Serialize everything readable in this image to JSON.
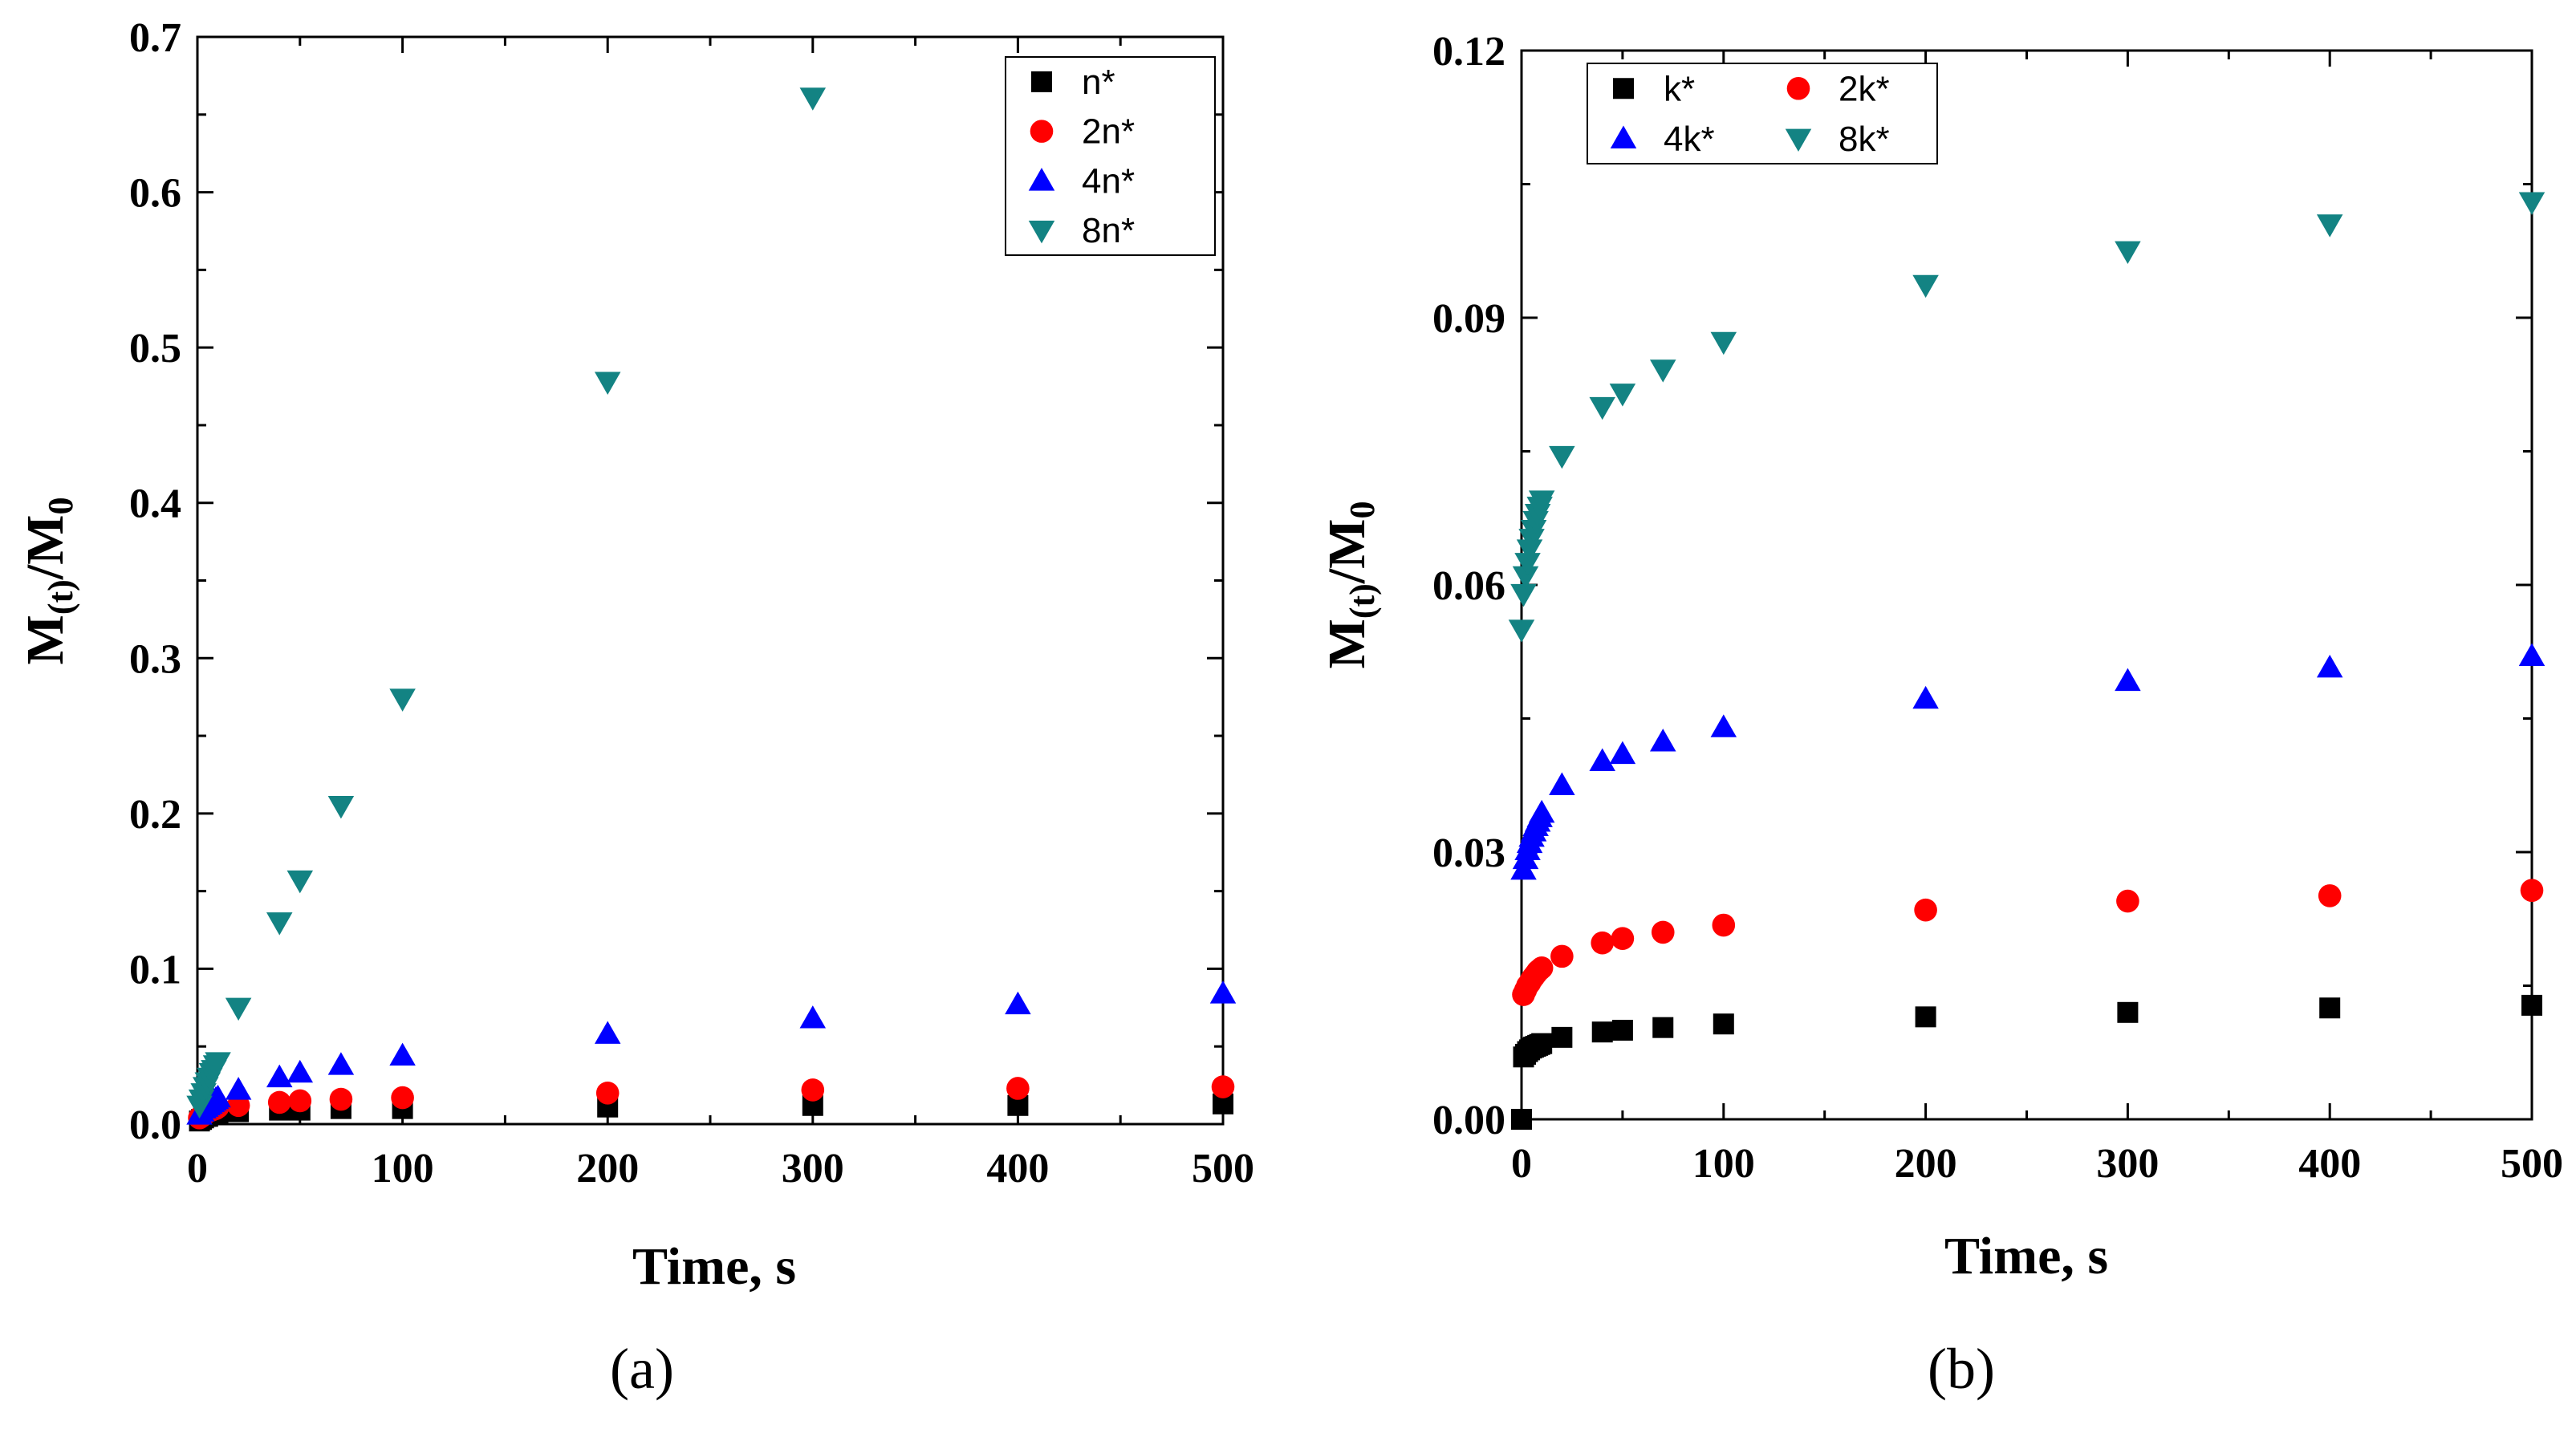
{
  "chart_data": [
    {
      "panel": "a",
      "caption": "(a)",
      "type": "scatter",
      "xlabel": "Time, s",
      "ylabel": "M(t)/M0",
      "ylabel_main": "M",
      "ylabel_sub1": "(t)",
      "ylabel_mid": "/M",
      "ylabel_sub2": "0",
      "xlim": [
        0,
        500
      ],
      "ylim": [
        0,
        0.7
      ],
      "xticks": [
        0,
        100,
        200,
        300,
        400,
        500
      ],
      "xtick_labels": [
        "0",
        "100",
        "200",
        "300",
        "400",
        "500"
      ],
      "yticks": [
        0,
        0.1,
        0.2,
        0.3,
        0.4,
        0.5,
        0.6,
        0.7
      ],
      "ytick_labels": [
        "0.0",
        "0.1",
        "0.2",
        "0.3",
        "0.4",
        "0.5",
        "0.6",
        "0.7"
      ],
      "legend_position": "top-right",
      "legend_columns": 1,
      "series": [
        {
          "name": "n*",
          "marker": "square",
          "color": "#000000",
          "x": [
            1,
            2,
            3,
            4,
            5,
            6,
            7,
            8,
            9,
            10,
            20,
            40,
            50,
            70,
            100,
            200,
            300,
            400,
            500
          ],
          "y": [
            0.002,
            0.003,
            0.004,
            0.005,
            0.005,
            0.006,
            0.006,
            0.006,
            0.007,
            0.007,
            0.008,
            0.009,
            0.009,
            0.01,
            0.01,
            0.011,
            0.012,
            0.012,
            0.013
          ]
        },
        {
          "name": "2n*",
          "marker": "circle",
          "color": "#ff0000",
          "x": [
            1,
            2,
            3,
            4,
            5,
            6,
            7,
            8,
            9,
            10,
            20,
            40,
            50,
            70,
            100,
            200,
            300,
            400,
            500
          ],
          "y": [
            0.004,
            0.005,
            0.006,
            0.007,
            0.008,
            0.009,
            0.009,
            0.01,
            0.01,
            0.011,
            0.012,
            0.014,
            0.015,
            0.016,
            0.017,
            0.02,
            0.022,
            0.023,
            0.024
          ]
        },
        {
          "name": "4n*",
          "marker": "triangle-up",
          "color": "#0000ff",
          "x": [
            1,
            2,
            3,
            4,
            5,
            6,
            7,
            8,
            9,
            10,
            20,
            40,
            50,
            70,
            100,
            200,
            300,
            400,
            500
          ],
          "y": [
            0.006,
            0.008,
            0.01,
            0.011,
            0.012,
            0.013,
            0.014,
            0.015,
            0.016,
            0.017,
            0.022,
            0.03,
            0.033,
            0.038,
            0.044,
            0.058,
            0.068,
            0.077,
            0.084
          ]
        },
        {
          "name": "8n*",
          "marker": "triangle-down",
          "color": "#138383",
          "x": [
            1,
            2,
            3,
            4,
            5,
            6,
            7,
            8,
            9,
            10,
            20,
            40,
            50,
            70,
            100,
            200,
            300,
            400,
            500
          ],
          "y": [
            0.012,
            0.016,
            0.02,
            0.024,
            0.027,
            0.03,
            0.033,
            0.035,
            0.038,
            0.04,
            0.075,
            0.13,
            0.157,
            0.205,
            0.274,
            0.478,
            0.661,
            null,
            null
          ]
        }
      ]
    },
    {
      "panel": "b",
      "caption": "(b)",
      "type": "scatter",
      "xlabel": "Time, s",
      "ylabel": "M(t)/M0",
      "ylabel_main": "M",
      "ylabel_sub1": "(t)",
      "ylabel_mid": "/M",
      "ylabel_sub2": "0",
      "xlim": [
        0,
        500
      ],
      "ylim": [
        0,
        0.12
      ],
      "xticks": [
        0,
        100,
        200,
        300,
        400,
        500
      ],
      "xtick_labels": [
        "0",
        "100",
        "200",
        "300",
        "400",
        "500"
      ],
      "yticks": [
        0,
        0.03,
        0.06,
        0.09,
        0.12
      ],
      "ytick_labels": [
        "0.00",
        "0.03",
        "0.06",
        "0.09",
        "0.12"
      ],
      "legend_position": "top-left",
      "legend_columns": 2,
      "series": [
        {
          "name": "k*",
          "marker": "square",
          "color": "#000000",
          "x": [
            0,
            1,
            2,
            3,
            4,
            5,
            6,
            7,
            8,
            9,
            10,
            20,
            40,
            50,
            70,
            100,
            200,
            300,
            400,
            500
          ],
          "y": [
            0.0,
            0.007,
            0.0073,
            0.0076,
            0.0078,
            0.008,
            0.0081,
            0.0082,
            0.0083,
            0.0084,
            0.0085,
            0.0092,
            0.0098,
            0.01,
            0.0103,
            0.0107,
            0.0115,
            0.012,
            0.0125,
            0.0128
          ]
        },
        {
          "name": "2k*",
          "marker": "circle",
          "color": "#ff0000",
          "x": [
            1,
            2,
            3,
            4,
            5,
            6,
            7,
            8,
            9,
            10,
            20,
            40,
            50,
            70,
            100,
            200,
            300,
            400,
            500
          ],
          "y": [
            0.014,
            0.0145,
            0.015,
            0.0153,
            0.0157,
            0.016,
            0.0163,
            0.0166,
            0.0168,
            0.017,
            0.0183,
            0.0198,
            0.0203,
            0.021,
            0.0218,
            0.0235,
            0.0245,
            0.0251,
            0.0257
          ]
        },
        {
          "name": "4k*",
          "marker": "triangle-up",
          "color": "#0000ff",
          "x": [
            1,
            2,
            3,
            4,
            5,
            6,
            7,
            8,
            9,
            10,
            20,
            40,
            50,
            70,
            100,
            200,
            300,
            400,
            500
          ],
          "y": [
            0.028,
            0.0292,
            0.0302,
            0.031,
            0.0317,
            0.0323,
            0.0329,
            0.0334,
            0.0339,
            0.0344,
            0.0375,
            0.0402,
            0.041,
            0.0424,
            0.044,
            0.0472,
            0.0492,
            0.0507,
            0.052
          ]
        },
        {
          "name": "8k*",
          "marker": "triangle-down",
          "color": "#138383",
          "x": [
            0,
            1,
            2,
            3,
            4,
            5,
            6,
            7,
            8,
            9,
            10,
            20,
            40,
            50,
            70,
            100,
            200,
            300,
            400,
            500
          ],
          "y": [
            0.055,
            0.059,
            0.061,
            0.0625,
            0.064,
            0.0652,
            0.0662,
            0.0672,
            0.068,
            0.0688,
            0.0695,
            0.0745,
            0.08,
            0.0815,
            0.0842,
            0.0873,
            0.0937,
            0.0975,
            0.1005,
            0.103
          ]
        }
      ]
    }
  ]
}
